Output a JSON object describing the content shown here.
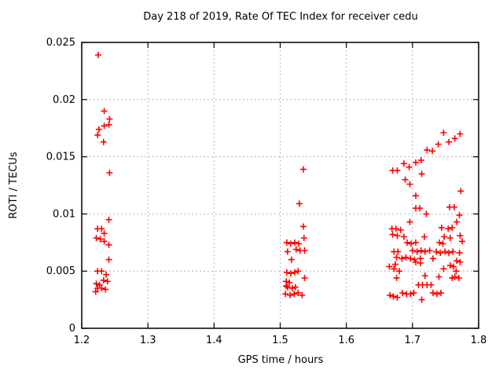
{
  "chart_data": {
    "type": "scatter",
    "title": "Day 218 of 2019, Rate Of TEC Index for receiver cedu",
    "xlabel": "GPS time / hours",
    "ylabel": "ROTI / TECUs",
    "xlim": [
      1.2,
      1.8
    ],
    "ylim": [
      0,
      0.025
    ],
    "xticks": [
      1.2,
      1.3,
      1.4,
      1.5,
      1.6,
      1.7,
      1.8
    ],
    "xtick_labels": [
      "1.2",
      "1.3",
      "1.4",
      "1.5",
      "1.6",
      "1.7",
      "1.8"
    ],
    "yticks": [
      0,
      0.005,
      0.01,
      0.015,
      0.02,
      0.025
    ],
    "ytick_labels": [
      "0",
      "0.005",
      "0.01",
      "0.015",
      "0.02",
      "0.025"
    ],
    "grid": true,
    "legend": "none",
    "marker": "plus",
    "marker_color": "#ff0000",
    "grid_color": "#b8b8b8",
    "border_color": "#000000",
    "points": [
      [
        1.225,
        0.0239
      ],
      [
        1.234,
        0.019
      ],
      [
        1.242,
        0.0183
      ],
      [
        1.241,
        0.0178
      ],
      [
        1.234,
        0.0177
      ],
      [
        1.226,
        0.0174
      ],
      [
        1.224,
        0.0169
      ],
      [
        1.233,
        0.0163
      ],
      [
        1.242,
        0.0136
      ],
      [
        1.241,
        0.0095
      ],
      [
        1.224,
        0.0087
      ],
      [
        1.23,
        0.0087
      ],
      [
        1.234,
        0.0083
      ],
      [
        1.222,
        0.0079
      ],
      [
        1.228,
        0.0078
      ],
      [
        1.234,
        0.0076
      ],
      [
        1.241,
        0.0073
      ],
      [
        1.241,
        0.006
      ],
      [
        1.224,
        0.005
      ],
      [
        1.23,
        0.005
      ],
      [
        1.237,
        0.0047
      ],
      [
        1.233,
        0.0042
      ],
      [
        1.239,
        0.0041
      ],
      [
        1.222,
        0.0039
      ],
      [
        1.227,
        0.0038
      ],
      [
        1.224,
        0.0035
      ],
      [
        1.23,
        0.0035
      ],
      [
        1.236,
        0.0034
      ],
      [
        1.221,
        0.0032
      ],
      [
        1.535,
        0.0139
      ],
      [
        1.529,
        0.0109
      ],
      [
        1.535,
        0.0089
      ],
      [
        1.536,
        0.0079
      ],
      [
        1.51,
        0.0075
      ],
      [
        1.516,
        0.0074
      ],
      [
        1.522,
        0.0075
      ],
      [
        1.528,
        0.0074
      ],
      [
        1.511,
        0.0067
      ],
      [
        1.524,
        0.0069
      ],
      [
        1.53,
        0.0068
      ],
      [
        1.537,
        0.0068
      ],
      [
        1.517,
        0.006
      ],
      [
        1.51,
        0.0049
      ],
      [
        1.516,
        0.0048
      ],
      [
        1.522,
        0.0049
      ],
      [
        1.527,
        0.005
      ],
      [
        1.537,
        0.0044
      ],
      [
        1.509,
        0.0041
      ],
      [
        1.514,
        0.004
      ],
      [
        1.509,
        0.0037
      ],
      [
        1.511,
        0.0036
      ],
      [
        1.518,
        0.0035
      ],
      [
        1.523,
        0.0036
      ],
      [
        1.508,
        0.003
      ],
      [
        1.515,
        0.0029
      ],
      [
        1.521,
        0.003
      ],
      [
        1.527,
        0.0031
      ],
      [
        1.533,
        0.0029
      ],
      [
        1.747,
        0.0171
      ],
      [
        1.772,
        0.017
      ],
      [
        1.764,
        0.0166
      ],
      [
        1.755,
        0.0163
      ],
      [
        1.739,
        0.0161
      ],
      [
        1.722,
        0.0156
      ],
      [
        1.73,
        0.0155
      ],
      [
        1.713,
        0.0147
      ],
      [
        1.705,
        0.0145
      ],
      [
        1.687,
        0.0144
      ],
      [
        1.695,
        0.0141
      ],
      [
        1.67,
        0.0138
      ],
      [
        1.677,
        0.0138
      ],
      [
        1.714,
        0.0135
      ],
      [
        1.689,
        0.013
      ],
      [
        1.696,
        0.0126
      ],
      [
        1.773,
        0.012
      ],
      [
        1.705,
        0.0116
      ],
      [
        1.705,
        0.0105
      ],
      [
        1.711,
        0.0105
      ],
      [
        1.756,
        0.0106
      ],
      [
        1.763,
        0.0106
      ],
      [
        1.721,
        0.01
      ],
      [
        1.771,
        0.0099
      ],
      [
        1.696,
        0.0093
      ],
      [
        1.767,
        0.0093
      ],
      [
        1.669,
        0.0087
      ],
      [
        1.675,
        0.0087
      ],
      [
        1.682,
        0.0086
      ],
      [
        1.744,
        0.0088
      ],
      [
        1.754,
        0.0087
      ],
      [
        1.76,
        0.0088
      ],
      [
        1.67,
        0.0082
      ],
      [
        1.677,
        0.0081
      ],
      [
        1.687,
        0.008
      ],
      [
        1.718,
        0.008
      ],
      [
        1.748,
        0.008
      ],
      [
        1.757,
        0.0079
      ],
      [
        1.772,
        0.0081
      ],
      [
        1.692,
        0.0075
      ],
      [
        1.698,
        0.0074
      ],
      [
        1.705,
        0.0075
      ],
      [
        1.741,
        0.0075
      ],
      [
        1.746,
        0.0074
      ],
      [
        1.775,
        0.0076
      ],
      [
        1.672,
        0.0067
      ],
      [
        1.678,
        0.0067
      ],
      [
        1.7,
        0.0068
      ],
      [
        1.707,
        0.0067
      ],
      [
        1.713,
        0.0068
      ],
      [
        1.719,
        0.0067
      ],
      [
        1.726,
        0.0068
      ],
      [
        1.736,
        0.0067
      ],
      [
        1.742,
        0.0066
      ],
      [
        1.749,
        0.0067
      ],
      [
        1.755,
        0.0066
      ],
      [
        1.761,
        0.0067
      ],
      [
        1.771,
        0.0066
      ],
      [
        1.676,
        0.0062
      ],
      [
        1.684,
        0.0061
      ],
      [
        1.69,
        0.0062
      ],
      [
        1.697,
        0.0061
      ],
      [
        1.703,
        0.006
      ],
      [
        1.712,
        0.0061
      ],
      [
        1.731,
        0.0061
      ],
      [
        1.767,
        0.0059
      ],
      [
        1.772,
        0.0058
      ],
      [
        1.665,
        0.0054
      ],
      [
        1.672,
        0.0052
      ],
      [
        1.674,
        0.0056
      ],
      [
        1.705,
        0.0058
      ],
      [
        1.712,
        0.0057
      ],
      [
        1.747,
        0.0052
      ],
      [
        1.757,
        0.0055
      ],
      [
        1.762,
        0.0054
      ],
      [
        1.68,
        0.005
      ],
      [
        1.766,
        0.005
      ],
      [
        1.676,
        0.0044
      ],
      [
        1.719,
        0.0046
      ],
      [
        1.74,
        0.0045
      ],
      [
        1.76,
        0.0044
      ],
      [
        1.764,
        0.0045
      ],
      [
        1.77,
        0.0044
      ],
      [
        1.709,
        0.0038
      ],
      [
        1.715,
        0.0038
      ],
      [
        1.722,
        0.0038
      ],
      [
        1.728,
        0.0038
      ],
      [
        1.731,
        0.0031
      ],
      [
        1.737,
        0.003
      ],
      [
        1.743,
        0.0031
      ],
      [
        1.685,
        0.0031
      ],
      [
        1.691,
        0.003
      ],
      [
        1.697,
        0.003
      ],
      [
        1.702,
        0.0031
      ],
      [
        1.666,
        0.0029
      ],
      [
        1.671,
        0.0028
      ],
      [
        1.677,
        0.0027
      ],
      [
        1.714,
        0.0025
      ]
    ]
  }
}
